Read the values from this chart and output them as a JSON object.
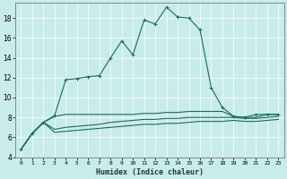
{
  "xlabel": "Humidex (Indice chaleur)",
  "background_color": "#c8ece8",
  "grid_color": "#b0d8d4",
  "line_color": "#1a6b5a",
  "xlim": [
    -0.5,
    23.5
  ],
  "ylim": [
    4,
    19.5
  ],
  "yticks": [
    4,
    6,
    8,
    10,
    12,
    14,
    16,
    18
  ],
  "xticks": [
    0,
    1,
    2,
    3,
    4,
    5,
    6,
    7,
    8,
    9,
    10,
    11,
    12,
    13,
    14,
    15,
    16,
    17,
    18,
    19,
    20,
    21,
    22,
    23
  ],
  "s1_x": [
    0,
    1,
    2,
    3,
    4,
    5,
    6,
    7,
    8,
    9,
    10,
    11,
    12,
    13,
    14,
    15,
    16,
    17,
    18,
    19,
    20,
    21,
    22,
    23
  ],
  "s1_y": [
    4.8,
    6.4,
    7.5,
    8.1,
    8.3,
    8.3,
    8.3,
    8.3,
    8.3,
    8.3,
    8.3,
    8.4,
    8.4,
    8.5,
    8.5,
    8.6,
    8.6,
    8.6,
    8.6,
    8.1,
    8.0,
    8.0,
    8.3,
    8.3
  ],
  "s2_x": [
    0,
    1,
    2,
    3,
    4,
    5,
    6,
    7,
    8,
    9,
    10,
    11,
    12,
    13,
    14,
    15,
    16,
    17,
    18,
    19,
    20,
    21,
    22,
    23
  ],
  "s2_y": [
    4.8,
    6.4,
    7.5,
    6.8,
    7.0,
    7.1,
    7.2,
    7.3,
    7.5,
    7.6,
    7.7,
    7.8,
    7.8,
    7.9,
    7.9,
    8.0,
    8.0,
    8.0,
    8.0,
    8.0,
    7.9,
    7.9,
    8.0,
    8.1
  ],
  "s3_x": [
    0,
    1,
    2,
    3,
    4,
    5,
    6,
    7,
    8,
    9,
    10,
    11,
    12,
    13,
    14,
    15,
    16,
    17,
    18,
    19,
    20,
    21,
    22,
    23
  ],
  "s3_y": [
    4.8,
    6.4,
    7.5,
    6.5,
    6.6,
    6.7,
    6.8,
    6.9,
    7.0,
    7.1,
    7.2,
    7.3,
    7.3,
    7.4,
    7.4,
    7.5,
    7.6,
    7.6,
    7.6,
    7.7,
    7.6,
    7.6,
    7.7,
    7.8
  ],
  "s4_x": [
    0,
    1,
    2,
    3,
    4,
    5,
    6,
    7,
    8,
    9,
    10,
    11,
    12,
    13,
    14,
    15,
    16,
    17,
    18,
    19,
    20,
    21,
    22,
    23
  ],
  "s4_y": [
    4.8,
    6.4,
    7.5,
    8.2,
    11.8,
    11.9,
    12.1,
    12.2,
    14.0,
    15.7,
    14.3,
    17.8,
    17.4,
    19.1,
    18.1,
    18.0,
    16.8,
    11.0,
    9.0,
    8.1,
    8.0,
    8.3,
    8.3,
    8.3
  ]
}
